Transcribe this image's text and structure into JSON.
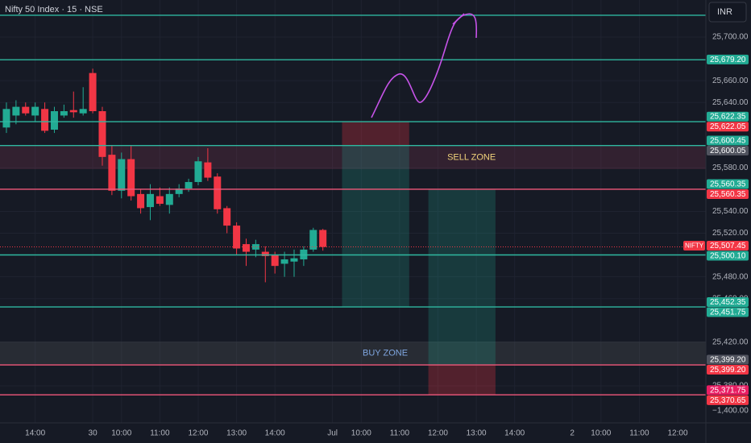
{
  "chart_data": {
    "type": "candlestick",
    "title": "Nifty 50 Index · 15 · NSE",
    "currency": "INR",
    "up_color": "#22ab94",
    "down_color": "#f23645",
    "xlim": [
      -0.67,
      72.94
    ],
    "ylim": [
      25346,
      25734
    ],
    "grid": true,
    "xticks": [
      {
        "value": 3,
        "label": "14:00"
      },
      {
        "value": 9,
        "label": "30"
      },
      {
        "value": 12,
        "label": "10:00"
      },
      {
        "value": 16,
        "label": "11:00"
      },
      {
        "value": 20,
        "label": "12:00"
      },
      {
        "value": 24,
        "label": "13:00"
      },
      {
        "value": 28,
        "label": "14:00"
      },
      {
        "value": 34,
        "label": "Jul"
      },
      {
        "value": 37,
        "label": "10:00"
      },
      {
        "value": 41,
        "label": "11:00"
      },
      {
        "value": 45,
        "label": "12:00"
      },
      {
        "value": 49,
        "label": "13:00"
      },
      {
        "value": 53,
        "label": "14:00"
      },
      {
        "value": 59,
        "label": "2"
      },
      {
        "value": 62,
        "label": "10:00"
      },
      {
        "value": 66,
        "label": "11:00"
      },
      {
        "value": 70,
        "label": "12:00"
      }
    ],
    "yticks": [
      {
        "value": 25700,
        "label": "25,700.00"
      },
      {
        "value": 25660,
        "label": "25,660.00"
      },
      {
        "value": 25640,
        "label": "25,640.00"
      },
      {
        "value": 25580,
        "label": "25,580.00"
      },
      {
        "value": 25540,
        "label": "25,540.00"
      },
      {
        "value": 25520,
        "label": "25,520.00"
      },
      {
        "value": 25480,
        "label": "25,480.00"
      },
      {
        "value": 25460,
        "label": "25,460.00"
      },
      {
        "value": 25420,
        "label": "25,420.00"
      },
      {
        "value": 25380,
        "label": "25,380.00"
      }
    ],
    "ohlc": [
      [
        25617,
        25640,
        25612,
        25634
      ],
      [
        25628,
        25642,
        25620,
        25636
      ],
      [
        25636,
        25640,
        25628,
        25630
      ],
      [
        25628,
        25640,
        25622,
        25636
      ],
      [
        25634,
        25640,
        25612,
        25614
      ],
      [
        25615,
        25636,
        25612,
        25632
      ],
      [
        25628,
        25638,
        25626,
        25632
      ],
      [
        25633,
        25650,
        25626,
        25631
      ],
      [
        25630,
        25654,
        25628,
        25634
      ],
      [
        25667,
        25671,
        25630,
        25632
      ],
      [
        25632,
        25636,
        25582,
        25590
      ],
      [
        25592,
        25601,
        25555,
        25559
      ],
      [
        25559,
        25594,
        25552,
        25588
      ],
      [
        25588,
        25600,
        25550,
        25554
      ],
      [
        25556,
        25560,
        25538,
        25543
      ],
      [
        25544,
        25565,
        25532,
        25556
      ],
      [
        25554,
        25562,
        25545,
        25547
      ],
      [
        25546,
        25562,
        25538,
        25556
      ],
      [
        25556,
        25565,
        25553,
        25561
      ],
      [
        25561,
        25570,
        25558,
        25567
      ],
      [
        25567,
        25590,
        25564,
        25586
      ],
      [
        25585,
        25598,
        25568,
        25571
      ],
      [
        25572,
        25575,
        25538,
        25542
      ],
      [
        25543,
        25545,
        25520,
        25527
      ],
      [
        25527,
        25530,
        25500,
        25506
      ],
      [
        25510,
        25515,
        25490,
        25503
      ],
      [
        25505,
        25514,
        25498,
        25510
      ],
      [
        25503,
        25508,
        25475,
        25499
      ],
      [
        25500,
        25503,
        25483,
        25490
      ],
      [
        25492,
        25503,
        25480,
        25496
      ],
      [
        25494,
        25505,
        25480,
        25497
      ],
      [
        25496,
        25508,
        25490,
        25505
      ],
      [
        25505,
        25525,
        25503,
        25523
      ],
      [
        25523,
        25524,
        25504,
        25507.45
      ]
    ],
    "levels": [
      {
        "value": 25720,
        "color": "#2fb8a0"
      },
      {
        "value": 25679.2,
        "color": "#2fb8a0"
      },
      {
        "value": 25622.35,
        "color": "#2fb8a0"
      },
      {
        "value": 25600.45,
        "color": "#2fb8a0"
      },
      {
        "value": 25560.35,
        "color": "#f0577a"
      },
      {
        "value": 25500.1,
        "color": "#2fb8a0"
      },
      {
        "value": 25452.35,
        "color": "#2fb8a0"
      },
      {
        "value": 25399.2,
        "color": "#f0577a"
      },
      {
        "value": 25371.75,
        "color": "#f0577a"
      }
    ],
    "zones": [
      {
        "label": "SELL ZONE",
        "from": 25578.8,
        "to": 25600.05,
        "color": "rgba(150,60,90,0.22)",
        "text_color": "#f0d27a",
        "label_x": 48.5
      },
      {
        "label": "BUY ZONE",
        "from": 25399.2,
        "to": 25420.6,
        "color": "rgba(120,130,120,0.18)",
        "text_color": "#7fa6e0",
        "label_x": 39.5
      }
    ],
    "positions": [
      {
        "x0": 35,
        "x1": 42,
        "entry": 25600.45,
        "stop": 25622.35,
        "target": 25452.35
      },
      {
        "x0": 44,
        "x1": 51,
        "entry": 25399.2,
        "stop": 25371.75,
        "target": 25560.35
      }
    ],
    "price_tags": [
      {
        "value": 25679.2,
        "label": "25,679.20",
        "color": "#22ab94"
      },
      {
        "value": 25622.35,
        "label": "25,622.35",
        "color": "#22ab94"
      },
      {
        "value": 25622.05,
        "label": "25,622.05",
        "color": "#f23645"
      },
      {
        "value": 25600.45,
        "label": "25,600.45",
        "color": "#22ab94"
      },
      {
        "value": 25600.05,
        "label": "25,600.05",
        "color": "#50535e"
      },
      {
        "value": 25560.35,
        "label": "25,560.35",
        "color": "#22ab94"
      },
      {
        "value": 25560.35,
        "label": "25,560.35",
        "color": "#f23645"
      },
      {
        "value": 25507.45,
        "label": "25,507.45",
        "color": "#f23645",
        "symbol": "NIFTY"
      },
      {
        "value": 25500.1,
        "label": "25,500.10",
        "color": "#22ab94"
      },
      {
        "value": 25452.35,
        "label": "25,452.35",
        "color": "#22ab94"
      },
      {
        "value": 25451.75,
        "label": "25,451.75",
        "color": "#22ab94"
      },
      {
        "value": 25399.2,
        "label": "25,399.20",
        "color": "#50535e"
      },
      {
        "value": 25399.2,
        "label": "25,399.20",
        "color": "#f23645"
      },
      {
        "value": 25371.75,
        "label": "25,371.75",
        "color": "#e91e63"
      },
      {
        "value": 25370.65,
        "label": "25,370.65",
        "color": "#f23645"
      }
    ],
    "indicator_label": "−1,400.00"
  }
}
